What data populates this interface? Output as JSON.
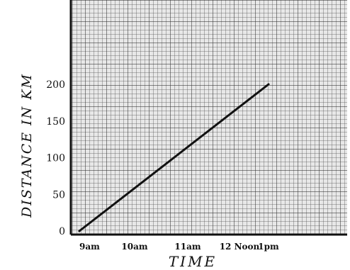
{
  "chart_data": {
    "type": "line",
    "title": "",
    "xlabel": "TIME",
    "ylabel": "DISTANCE IN KM",
    "x_tick_labels": [
      "9am",
      "10am",
      "11am",
      "12 Noon",
      "1pm"
    ],
    "x_tick_hours": [
      9,
      10,
      11,
      12,
      13
    ],
    "y_ticks": [
      0,
      50,
      100,
      150,
      200
    ],
    "y_tick_labels": [
      "0",
      "50",
      "100",
      "150",
      "200"
    ],
    "xlim": [
      9,
      13
    ],
    "ylim": [
      0,
      300
    ],
    "grid": true,
    "series": [
      {
        "x": [
          9,
          13
        ],
        "y": [
          0,
          200
        ]
      }
    ]
  }
}
